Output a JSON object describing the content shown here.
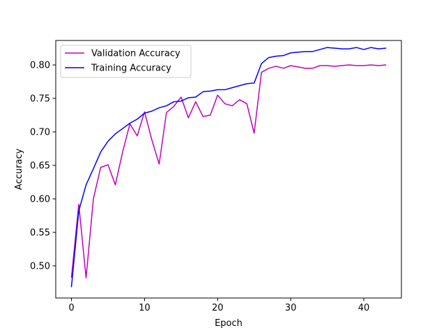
{
  "chart_data": {
    "type": "line",
    "title": "",
    "xlabel": "Epoch",
    "ylabel": "Accuracy",
    "xlim": [
      -2.15,
      45.15
    ],
    "ylim": [
      0.452,
      0.8365
    ],
    "xticks": [
      0,
      10,
      20,
      30,
      40
    ],
    "xtick_labels": [
      "0",
      "10",
      "20",
      "30",
      "40"
    ],
    "yticks": [
      0.5,
      0.55,
      0.6,
      0.65,
      0.7,
      0.75,
      0.8
    ],
    "ytick_labels": [
      "0.50",
      "0.55",
      "0.60",
      "0.65",
      "0.70",
      "0.75",
      "0.80"
    ],
    "grid": false,
    "legend": "top-left",
    "x": [
      0,
      1,
      2,
      3,
      4,
      5,
      6,
      7,
      8,
      9,
      10,
      11,
      12,
      13,
      14,
      15,
      16,
      17,
      18,
      19,
      20,
      21,
      22,
      23,
      24,
      25,
      26,
      27,
      28,
      29,
      30,
      31,
      32,
      33,
      34,
      35,
      36,
      37,
      38,
      39,
      40,
      41,
      42,
      43
    ],
    "series": [
      {
        "name": "Validation Accuracy",
        "color": "#bf00bf",
        "values": [
          0.483,
          0.592,
          0.482,
          0.6,
          0.647,
          0.651,
          0.621,
          0.67,
          0.712,
          0.694,
          0.73,
          0.688,
          0.652,
          0.729,
          0.738,
          0.752,
          0.721,
          0.745,
          0.723,
          0.725,
          0.755,
          0.742,
          0.739,
          0.748,
          0.742,
          0.698,
          0.789,
          0.795,
          0.798,
          0.795,
          0.799,
          0.797,
          0.795,
          0.795,
          0.799,
          0.799,
          0.798,
          0.799,
          0.8,
          0.799,
          0.799,
          0.8,
          0.799,
          0.8
        ]
      },
      {
        "name": "Training Accuracy",
        "color": "#0000ff",
        "values": [
          0.469,
          0.582,
          0.621,
          0.645,
          0.67,
          0.686,
          0.697,
          0.705,
          0.713,
          0.719,
          0.728,
          0.731,
          0.736,
          0.739,
          0.745,
          0.746,
          0.751,
          0.752,
          0.76,
          0.761,
          0.763,
          0.763,
          0.766,
          0.769,
          0.772,
          0.773,
          0.802,
          0.811,
          0.813,
          0.814,
          0.818,
          0.819,
          0.82,
          0.82,
          0.823,
          0.826,
          0.825,
          0.824,
          0.824,
          0.826,
          0.823,
          0.826,
          0.824,
          0.825
        ]
      }
    ]
  }
}
